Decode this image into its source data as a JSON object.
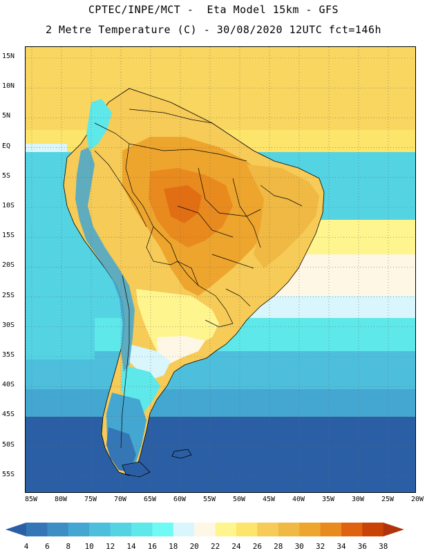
{
  "header": {
    "line1": "CPTEC/INPE/MCT -  Eta Model 15km - GFS",
    "line2": "2 Metre Temperature (C) - 30/08/2020 12UTC fct=146h"
  },
  "map": {
    "lat_labels": [
      "15N",
      "10N",
      "5N",
      "EQ",
      "5S",
      "10S",
      "15S",
      "20S",
      "25S",
      "30S",
      "35S",
      "40S",
      "45S",
      "50S",
      "55S"
    ],
    "lon_labels": [
      "85W",
      "80W",
      "75W",
      "70W",
      "65W",
      "60W",
      "55W",
      "50W",
      "45W",
      "40W",
      "35W",
      "30W",
      "25W",
      "20W"
    ]
  },
  "colorbar": {
    "labels": [
      "4",
      "6",
      "8",
      "10",
      "12",
      "14",
      "16",
      "18",
      "20",
      "22",
      "24",
      "26",
      "28",
      "30",
      "32",
      "34",
      "36",
      "38"
    ],
    "colors": [
      "#2a5fa6",
      "#3577b6",
      "#3c8ec4",
      "#44a7d1",
      "#4dbfdd",
      "#54d3e3",
      "#5ee8e9",
      "#6ffaf5",
      "#d8f6fb",
      "#fff7e6",
      "#fff58f",
      "#fde46a",
      "#f6cb57",
      "#f0b944",
      "#eda52e",
      "#e88a1e",
      "#df6210",
      "#c94206",
      "#b0330c"
    ]
  }
}
